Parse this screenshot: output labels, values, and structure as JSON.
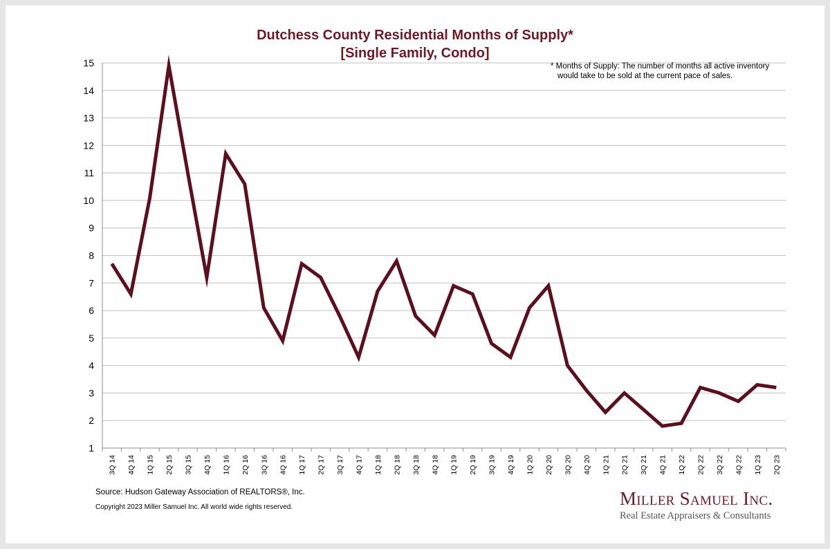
{
  "chart_data": {
    "type": "line",
    "title": "Dutchess County Residential Months of Supply*",
    "subtitle": "[Single Family, Condo]",
    "xlabel": "",
    "ylabel": "",
    "ylim": [
      1,
      15
    ],
    "yticks": [
      1,
      2,
      3,
      4,
      5,
      6,
      7,
      8,
      9,
      10,
      11,
      12,
      13,
      14,
      15
    ],
    "grid": true,
    "legend": "none",
    "categories": [
      "3Q 14",
      "4Q 14",
      "1Q 15",
      "2Q 15",
      "3Q 15",
      "4Q 15",
      "1Q 16",
      "2Q 16",
      "3Q 16",
      "4Q 16",
      "1Q 17",
      "2Q 17",
      "3Q 17",
      "4Q 17",
      "1Q 18",
      "2Q 18",
      "3Q 18",
      "4Q 18",
      "1Q 19",
      "2Q 19",
      "3Q 19",
      "4Q 19",
      "1Q 20",
      "2Q 20",
      "3Q 20",
      "4Q 20",
      "1Q 21",
      "2Q 21",
      "3Q 21",
      "4Q 21",
      "1Q 22",
      "2Q 22",
      "3Q 22",
      "4Q 22",
      "1Q 23",
      "2Q 23"
    ],
    "series": [
      {
        "values": [
          7.7,
          6.6,
          10.1,
          14.9,
          11.0,
          7.2,
          11.7,
          10.6,
          6.1,
          4.9,
          7.7,
          7.2,
          5.8,
          4.3,
          6.7,
          7.8,
          5.8,
          5.1,
          6.9,
          6.6,
          4.8,
          4.3,
          6.1,
          6.9,
          4.0,
          3.1,
          2.3,
          3.0,
          2.4,
          1.8,
          1.9,
          3.2,
          3.0,
          2.7,
          3.3,
          3.2
        ]
      }
    ],
    "colors": {
      "line": "#5c0f1d",
      "grid": "#bfbfbf"
    },
    "annotation": {
      "line1": "* Months of Supply: The number of months all active inventory",
      "line2": "would take to be sold at the current pace of sales."
    }
  },
  "footer": {
    "source": "Source: Hudson Gateway Association of REALTORS®, Inc.",
    "copyright": "Copyright 2023 Miller Samuel Inc.  All world wide rights reserved."
  },
  "brand": {
    "name": "Miller Samuel Inc.",
    "tagline": "Real Estate Appraisers & Consultants"
  }
}
